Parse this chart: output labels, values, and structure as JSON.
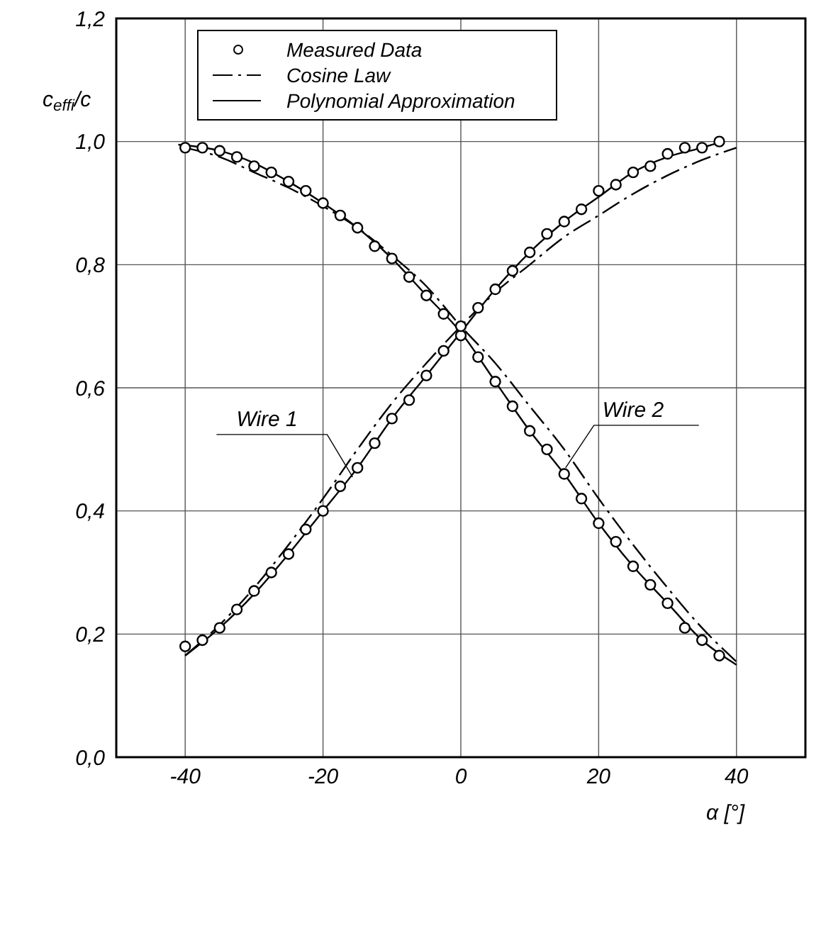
{
  "chart_data": {
    "type": "line",
    "xlabel": "α [°]",
    "ylabel": "c$_{effi}$/c",
    "xlim": [
      -50,
      50
    ],
    "xticks": [
      -40,
      -20,
      0,
      20,
      40
    ],
    "ylim": [
      0,
      1.2
    ],
    "yticks": [
      {
        "value": 0,
        "label": "0,0"
      },
      {
        "value": 0.2,
        "label": "0,2"
      },
      {
        "value": 0.4,
        "label": "0,4"
      },
      {
        "value": 0.6,
        "label": "0,6"
      },
      {
        "value": 0.8,
        "label": "0,8"
      },
      {
        "value": 1,
        "label": "1,0"
      },
      {
        "value": 1.2,
        "label": "1,2"
      }
    ],
    "grid": true,
    "legend": "top left",
    "series": [
      {
        "name": "Measured Data",
        "type": "scatter",
        "marker": "circle",
        "color": "#000000",
        "x": [
          -40,
          -37.5,
          -35,
          -32.5,
          -30,
          -27.5,
          -25,
          -22.5,
          -20,
          -17.5,
          -15,
          -12.5,
          -10,
          -7.5,
          -5,
          -2.5,
          0,
          2.5,
          5,
          7.5,
          10,
          12.5,
          15,
          17.5,
          20,
          22.5,
          25,
          27.5,
          30,
          32.5,
          35,
          37.5
        ],
        "values": [
          0.18,
          0.19,
          0.21,
          0.24,
          0.27,
          0.3,
          0.33,
          0.37,
          0.4,
          0.44,
          0.47,
          0.51,
          0.55,
          0.58,
          0.62,
          0.66,
          0.685,
          0.73,
          0.76,
          0.79,
          0.82,
          0.85,
          0.87,
          0.89,
          0.92,
          0.93,
          0.95,
          0.96,
          0.98,
          0.99,
          0.99,
          1.0
        ]
      },
      {
        "name": "Cosine Law",
        "type": "line",
        "line_style": "dashed",
        "marker": "none",
        "color": "#000000",
        "x": [
          -40,
          -35,
          -30,
          -25,
          -20,
          -15,
          -10,
          -5,
          0,
          5,
          10,
          15,
          20,
          25,
          30,
          35,
          40
        ],
        "values": [
          0.165,
          0.215,
          0.275,
          0.345,
          0.42,
          0.5,
          0.575,
          0.64,
          0.7,
          0.755,
          0.8,
          0.845,
          0.88,
          0.915,
          0.945,
          0.97,
          0.99
        ]
      },
      {
        "name": "Polynomial Approximation",
        "type": "line",
        "line_style": "solid",
        "marker": "none",
        "color": "#000000",
        "x": [
          -40,
          -35,
          -30,
          -25,
          -20,
          -15,
          -10,
          -5,
          0,
          5,
          10,
          15,
          20,
          25,
          30,
          35,
          38
        ],
        "values": [
          0.165,
          0.21,
          0.265,
          0.33,
          0.4,
          0.47,
          0.55,
          0.62,
          0.69,
          0.76,
          0.82,
          0.87,
          0.91,
          0.95,
          0.975,
          0.99,
          1.0
        ]
      },
      {
        "type": "scatter",
        "marker": "circle",
        "color": "#000000",
        "x": [
          -40,
          -37.5,
          -35,
          -32.5,
          -30,
          -27.5,
          -25,
          -22.5,
          -20,
          -17.5,
          -15,
          -12.5,
          -10,
          -7.5,
          -5,
          -2.5,
          0,
          2.5,
          5,
          7.5,
          10,
          12.5,
          15,
          17.5,
          20,
          22.5,
          25,
          27.5,
          30,
          32.5,
          35,
          37.5
        ],
        "values": [
          0.99,
          0.99,
          0.985,
          0.975,
          0.96,
          0.95,
          0.935,
          0.92,
          0.9,
          0.88,
          0.86,
          0.83,
          0.81,
          0.78,
          0.75,
          0.72,
          0.7,
          0.65,
          0.61,
          0.57,
          0.53,
          0.5,
          0.46,
          0.42,
          0.38,
          0.35,
          0.31,
          0.28,
          0.25,
          0.21,
          0.19,
          0.165
        ]
      },
      {
        "type": "line",
        "line_style": "dashed",
        "marker": "none",
        "color": "#000000",
        "x": [
          -40,
          -35,
          -30,
          -25,
          -20,
          -15,
          -10,
          -5,
          0,
          5,
          10,
          15,
          20,
          25,
          30,
          35,
          40
        ],
        "values": [
          0.99,
          0.975,
          0.95,
          0.925,
          0.895,
          0.86,
          0.815,
          0.765,
          0.7,
          0.64,
          0.57,
          0.5,
          0.42,
          0.345,
          0.275,
          0.21,
          0.155
        ]
      },
      {
        "type": "line",
        "line_style": "solid",
        "marker": "none",
        "color": "#000000",
        "x": [
          -41,
          -35,
          -30,
          -25,
          -20,
          -15,
          -10,
          -5,
          0,
          5,
          10,
          15,
          20,
          25,
          30,
          35,
          40
        ],
        "values": [
          0.995,
          0.985,
          0.965,
          0.935,
          0.9,
          0.86,
          0.81,
          0.75,
          0.69,
          0.61,
          0.53,
          0.46,
          0.38,
          0.31,
          0.25,
          0.19,
          0.15
        ]
      }
    ],
    "annotations": [
      {
        "text": "Wire 1",
        "x": -15.7,
        "y": 0.455
      },
      {
        "text": "Wire 2",
        "x": 15.2,
        "y": 0.47
      }
    ]
  }
}
